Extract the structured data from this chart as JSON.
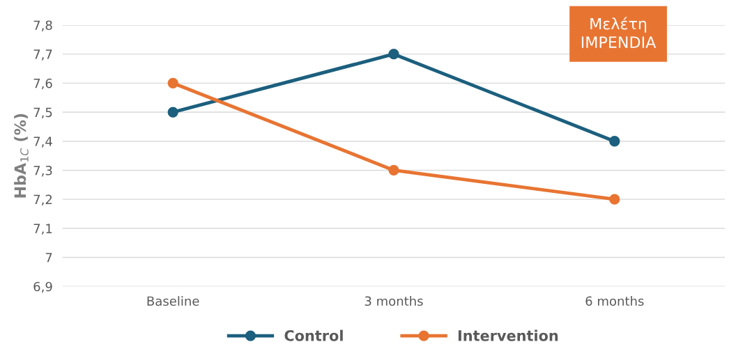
{
  "chart_data": {
    "type": "line",
    "ylabel": "HbA$_{1C}$ (%)",
    "categories": [
      "Baseline",
      "3 months",
      "6 months"
    ],
    "series": [
      {
        "name": "Control",
        "color": "#1c5f7e",
        "values": [
          7.5,
          7.7,
          7.4
        ]
      },
      {
        "name": "Intervention",
        "color": "#e87432",
        "values": [
          7.6,
          7.3,
          7.2
        ]
      }
    ],
    "ylim": [
      6.9,
      7.8
    ],
    "yticks": [
      {
        "value": 6.9,
        "label": "6,9"
      },
      {
        "value": 7,
        "label": "7"
      },
      {
        "value": 7.1,
        "label": "7,1"
      },
      {
        "value": 7.2,
        "label": "7,2"
      },
      {
        "value": 7.3,
        "label": "7,3"
      },
      {
        "value": 7.4,
        "label": "7,4"
      },
      {
        "value": 7.5,
        "label": "7,5"
      },
      {
        "value": 7.6,
        "label": "7,6"
      },
      {
        "value": 7.7,
        "label": "7,7"
      },
      {
        "value": 7.8,
        "label": "7,8"
      }
    ],
    "grid": "y",
    "legend": "bottom",
    "marker": "circle",
    "line_style": "solid",
    "annotations": [
      "Μελέτη\nIMPENDIA"
    ]
  }
}
